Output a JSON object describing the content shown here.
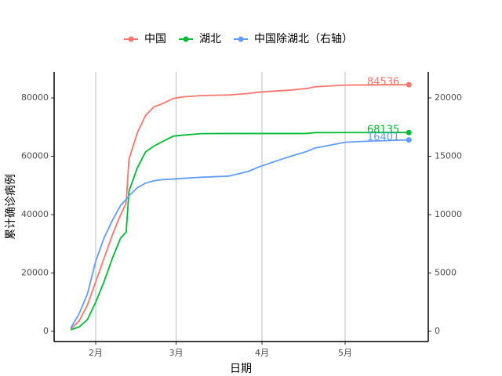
{
  "chart_data": {
    "type": "line",
    "legend_position": "top",
    "x_label": "日期",
    "y_label": "累计确诊病例",
    "x": [
      23,
      26,
      29,
      32,
      35,
      38,
      41,
      43,
      44,
      47,
      50,
      53,
      56,
      60,
      63,
      70,
      80,
      87,
      91,
      101,
      108,
      111,
      122,
      131,
      145
    ],
    "xlim": [
      17,
      152
    ],
    "xticks": [
      {
        "value": 32,
        "label": "2月"
      },
      {
        "value": 61,
        "label": "3月"
      },
      {
        "value": 92,
        "label": "4月"
      },
      {
        "value": 122,
        "label": "5月"
      }
    ],
    "ylim": [
      -3490,
      88860
    ],
    "yticks": [
      0,
      20000,
      40000,
      60000,
      80000
    ],
    "y2lim": [
      -872,
      22215
    ],
    "y2ticks": [
      0,
      5000,
      10000,
      15000,
      20000
    ],
    "x_grid": true,
    "series": [
      {
        "name": "中国",
        "color": "#F8766D",
        "values": [
          830,
          3500,
          9000,
          17000,
          25000,
          33000,
          40000,
          44000,
          59000,
          68000,
          74000,
          76900,
          78000,
          79800,
          80300,
          80800,
          81000,
          81500,
          82000,
          82600,
          83200,
          83800,
          84400,
          84450,
          84536
        ]
      },
      {
        "name": "湖北",
        "color": "#00BA38",
        "values": [
          549,
          1500,
          4000,
          10000,
          17000,
          25000,
          32000,
          34000,
          48000,
          56000,
          61500,
          63500,
          65000,
          66900,
          67200,
          67750,
          67800,
          67800,
          67800,
          67800,
          67800,
          68100,
          68128,
          68128,
          68135
        ]
      },
      {
        "name": "中国除湖北（右轴）",
        "color": "#619CFF",
        "axis": "y2",
        "values": [
          281,
          1500,
          3200,
          6000,
          8000,
          9500,
          10800,
          11300,
          11600,
          12300,
          12700,
          12900,
          13000,
          13050,
          13100,
          13200,
          13300,
          13700,
          14100,
          14900,
          15400,
          15700,
          16200,
          16300,
          16401
        ]
      }
    ]
  }
}
